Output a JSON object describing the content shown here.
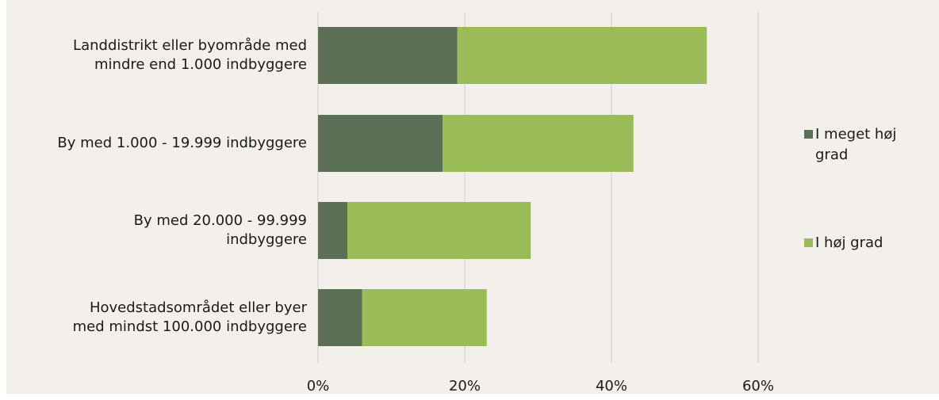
{
  "chart_data": {
    "type": "bar",
    "orientation": "horizontal",
    "stacked": true,
    "categories": [
      [
        "Landdistrikt eller byområde med",
        "mindre end 1.000 indbyggere"
      ],
      [
        "By med 1.000 - 19.999 indbyggere"
      ],
      [
        "By med 20.000 - 99.999",
        "indbyggere"
      ],
      [
        "Hovedstadsområdet eller byer",
        "med mindst 100.000 indbyggere"
      ]
    ],
    "series": [
      {
        "name": [
          "I meget høj",
          "grad"
        ],
        "color": "#5b7055",
        "values": [
          19,
          17,
          4,
          6
        ]
      },
      {
        "name": [
          "I høj grad"
        ],
        "color": "#9bbb59",
        "values": [
          34,
          26,
          25,
          17
        ]
      }
    ],
    "xlim": [
      0,
      60
    ],
    "xticks": [
      0,
      20,
      40,
      60
    ],
    "xtick_labels": [
      "0%",
      "20%",
      "40%",
      "60%"
    ],
    "grid": "vertical",
    "gridline_color": "#d9d9d9",
    "background": "#f3f0eb",
    "legend_position": "right",
    "title": "",
    "xlabel": "",
    "ylabel": ""
  }
}
